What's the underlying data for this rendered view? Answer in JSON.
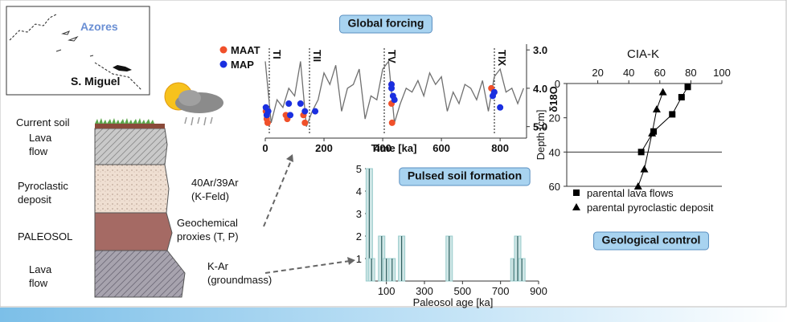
{
  "map": {
    "region": "Azores",
    "island": "S. Miguel"
  },
  "column": {
    "layers": [
      [
        "Current soil"
      ],
      [
        "Lava",
        "flow"
      ],
      [
        "Pyroclastic",
        "deposit"
      ],
      [
        "PALEOSOL"
      ],
      [
        "Lava",
        "flow"
      ]
    ],
    "methods": [
      [
        "40Ar/39Ar",
        "(K-Feld)"
      ],
      [
        "Geochemical",
        "proxies (T, P)"
      ],
      [
        "K-Ar",
        "(groundmass)"
      ]
    ]
  },
  "chart_data": [
    {
      "type": "line",
      "title": "Global forcing",
      "x_label": "Time [ka]",
      "y_label": "δ18O",
      "annotations": [
        "TI",
        "TII",
        "TV",
        "TIX"
      ],
      "xlim": [
        0,
        890
      ],
      "xticks": [
        0,
        200,
        400,
        600,
        800
      ],
      "ylim": [
        5.3,
        2.85
      ],
      "yticks": [
        {
          "value": 3,
          "label": "3.0"
        },
        {
          "value": 4,
          "label": "4.0"
        },
        {
          "value": 5,
          "label": "5.0"
        }
      ],
      "series": [
        {
          "color": "#707070",
          "mode": "line",
          "x": [
            0,
            20,
            40,
            60,
            80,
            100,
            120,
            140,
            160,
            180,
            200,
            220,
            240,
            260,
            280,
            300,
            320,
            340,
            360,
            380,
            400,
            420,
            440,
            460,
            480,
            500,
            520,
            540,
            560,
            580,
            600,
            620,
            640,
            660,
            680,
            700,
            720,
            740,
            760,
            780,
            800,
            820,
            840,
            860,
            880
          ],
          "values": [
            3.3,
            4.9,
            4.3,
            4.5,
            4.0,
            4.2,
            3.3,
            5.0,
            4.6,
            4.3,
            3.6,
            3.9,
            3.4,
            4.6,
            4.0,
            3.9,
            3.5,
            4.8,
            4.2,
            4.3,
            3.5,
            3.3,
            4.9,
            4.4,
            4.0,
            4.1,
            3.8,
            4.2,
            3.6,
            3.9,
            3.7,
            4.6,
            4.1,
            4.4,
            3.9,
            4.0,
            4.3,
            3.8,
            4.6,
            3.7,
            3.5,
            4.1,
            4.0,
            4.4,
            4.0
          ]
        },
        {
          "name": "MAAT",
          "color": "#f0502a",
          "mode": "markers",
          "x": [
            2,
            5,
            8,
            70,
            75,
            130,
            135,
            430,
            430,
            432,
            770,
            780
          ],
          "values": [
            4.6,
            4.8,
            4.9,
            4.7,
            4.8,
            4.7,
            4.9,
            3.9,
            4.4,
            4.9,
            4.0,
            4.1
          ]
        },
        {
          "name": "MAP",
          "color": "#1a2fe0",
          "mode": "markers",
          "x": [
            2,
            5,
            10,
            80,
            85,
            120,
            135,
            170,
            430,
            430,
            435,
            440,
            775,
            780,
            800
          ],
          "values": [
            4.5,
            4.7,
            4.6,
            4.4,
            4.7,
            4.4,
            4.6,
            4.6,
            3.9,
            4.0,
            4.2,
            4.3,
            4.2,
            4.1,
            4.5
          ]
        }
      ]
    },
    {
      "type": "bar",
      "title": "Pulsed soil formation",
      "x_label": "Paleosol age [ka]",
      "color": "#cfe6e6",
      "xlim": [
        0,
        900
      ],
      "xticks": [
        100,
        300,
        500,
        700,
        900
      ],
      "ylim": [
        0,
        5
      ],
      "yticks": [
        1,
        2,
        3,
        4,
        5
      ],
      "x": [
        10,
        22,
        75,
        100,
        130,
        180,
        430,
        770,
        790,
        812
      ],
      "values": [
        5,
        1,
        2,
        1,
        1,
        2,
        2,
        1,
        2,
        1
      ]
    },
    {
      "type": "scatter",
      "title": "CIA-K",
      "y_label": "Depth [cm]",
      "footer": "Geological control",
      "xlim": [
        0,
        100
      ],
      "xticks": [
        20,
        40,
        60,
        80,
        100
      ],
      "ylim": [
        60,
        0
      ],
      "yticks": [
        0,
        20,
        40,
        60
      ],
      "boundary": 40,
      "series": [
        {
          "name": "parental lava flows",
          "marker": "square",
          "color": "#000000",
          "x": [
            78,
            74,
            68,
            56,
            48
          ],
          "values": [
            2,
            8,
            18,
            28,
            40
          ]
        },
        {
          "name": "parental pyroclastic deposit",
          "marker": "triangle",
          "color": "#000000",
          "x": [
            62,
            58,
            55,
            50,
            46
          ],
          "values": [
            5,
            15,
            29,
            50,
            60
          ]
        }
      ]
    }
  ]
}
